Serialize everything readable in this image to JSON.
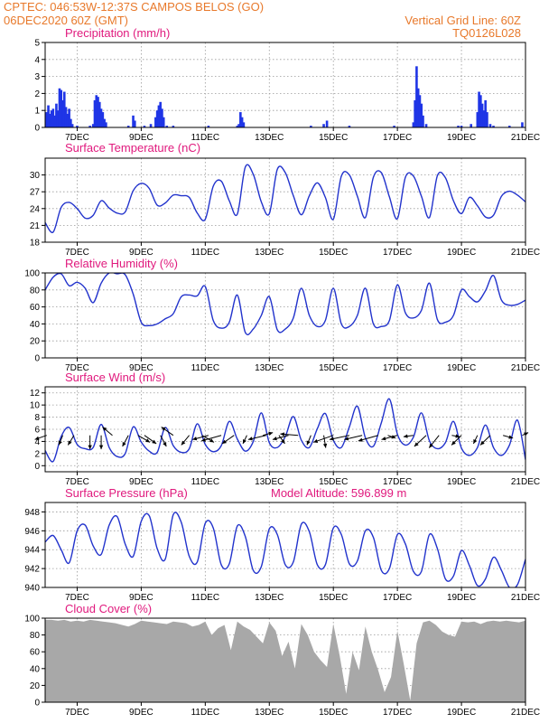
{
  "header": {
    "line1": "CPTEC:   046:53W-12:37S   CAMPOS BELOS (GO)",
    "line2": "06DEC2020 60Z (GMT)",
    "grid_note": "Vertical Grid Line: 60Z",
    "code": "TQ0126L028",
    "color": "#e8792b"
  },
  "colors": {
    "line": "#2233cc",
    "bar": "#1f35e6",
    "cloud": "#a8a8a8",
    "title": "#e0197d"
  },
  "chart_data": [
    {
      "type": "bar",
      "title": "Precipitation (mm/h)",
      "xlabel": "",
      "ylabel": "",
      "x_ticks": [
        "7DEC",
        "9DEC",
        "11DEC",
        "13DEC",
        "15DEC",
        "17DEC",
        "19DEC",
        "21DEC"
      ],
      "x_range": [
        6.0,
        21.0
      ],
      "ylim": [
        0,
        5
      ],
      "y_ticks": [
        0,
        1,
        2,
        3,
        4,
        5
      ],
      "grid": true,
      "bars": [
        [
          6.05,
          0.9
        ],
        [
          6.1,
          1.3
        ],
        [
          6.15,
          0.8
        ],
        [
          6.2,
          1.0
        ],
        [
          6.25,
          1.1
        ],
        [
          6.3,
          0.7
        ],
        [
          6.35,
          1.4
        ],
        [
          6.4,
          1.0
        ],
        [
          6.45,
          2.3
        ],
        [
          6.5,
          2.2
        ],
        [
          6.55,
          1.6
        ],
        [
          6.6,
          2.1
        ],
        [
          6.65,
          1.2
        ],
        [
          6.7,
          0.8
        ],
        [
          6.75,
          1.1
        ],
        [
          6.8,
          0.5
        ],
        [
          6.85,
          0.2
        ],
        [
          7.0,
          0.1
        ],
        [
          7.4,
          0.1
        ],
        [
          7.5,
          0.2
        ],
        [
          7.55,
          1.6
        ],
        [
          7.6,
          1.9
        ],
        [
          7.65,
          1.8
        ],
        [
          7.7,
          1.5
        ],
        [
          7.75,
          1.1
        ],
        [
          7.8,
          0.9
        ],
        [
          7.85,
          0.5
        ],
        [
          7.9,
          0.3
        ],
        [
          8.6,
          0.1
        ],
        [
          8.75,
          0.7
        ],
        [
          8.8,
          0.4
        ],
        [
          9.1,
          0.1
        ],
        [
          9.3,
          0.2
        ],
        [
          9.45,
          0.6
        ],
        [
          9.5,
          1.0
        ],
        [
          9.55,
          1.3
        ],
        [
          9.6,
          1.5
        ],
        [
          9.65,
          1.1
        ],
        [
          9.7,
          0.6
        ],
        [
          9.8,
          0.1
        ],
        [
          10.0,
          0.1
        ],
        [
          11.1,
          0.1
        ],
        [
          12.0,
          0.1
        ],
        [
          12.05,
          0.2
        ],
        [
          12.1,
          0.9
        ],
        [
          12.15,
          0.6
        ],
        [
          12.2,
          0.3
        ],
        [
          14.3,
          0.1
        ],
        [
          14.7,
          0.2
        ],
        [
          14.8,
          0.4
        ],
        [
          15.5,
          0.1
        ],
        [
          16.9,
          0.1
        ],
        [
          17.5,
          0.3
        ],
        [
          17.55,
          1.6
        ],
        [
          17.6,
          3.6
        ],
        [
          17.65,
          2.3
        ],
        [
          17.7,
          1.9
        ],
        [
          17.75,
          1.4
        ],
        [
          17.8,
          0.7
        ],
        [
          17.9,
          0.2
        ],
        [
          18.9,
          0.1
        ],
        [
          19.0,
          0.1
        ],
        [
          19.3,
          0.2
        ],
        [
          19.5,
          0.9
        ],
        [
          19.55,
          2.1
        ],
        [
          19.6,
          1.9
        ],
        [
          19.65,
          1.4
        ],
        [
          19.7,
          1.0
        ],
        [
          19.75,
          1.6
        ],
        [
          19.8,
          0.9
        ],
        [
          19.9,
          0.2
        ],
        [
          20.0,
          0.1
        ],
        [
          20.5,
          0.1
        ],
        [
          20.9,
          0.3
        ]
      ]
    },
    {
      "type": "line",
      "title": "Surface Temperature (nC)",
      "xlabel": "",
      "ylabel": "",
      "x_ticks": [
        "7DEC",
        "9DEC",
        "11DEC",
        "13DEC",
        "15DEC",
        "17DEC",
        "19DEC",
        "21DEC"
      ],
      "x_range": [
        6.0,
        21.0
      ],
      "ylim": [
        18,
        33
      ],
      "y_ticks": [
        18,
        21,
        24,
        27,
        30
      ],
      "grid": true,
      "x": [
        6.0,
        6.25,
        6.5,
        6.75,
        7.0,
        7.25,
        7.5,
        7.75,
        8.0,
        8.25,
        8.5,
        8.75,
        9.0,
        9.25,
        9.5,
        9.75,
        10.0,
        10.25,
        10.5,
        10.75,
        11.0,
        11.25,
        11.5,
        11.75,
        12.0,
        12.25,
        12.5,
        12.75,
        13.0,
        13.25,
        13.5,
        13.75,
        14.0,
        14.25,
        14.5,
        14.75,
        15.0,
        15.25,
        15.5,
        15.75,
        16.0,
        16.25,
        16.5,
        16.75,
        17.0,
        17.25,
        17.5,
        17.75,
        18.0,
        18.25,
        18.5,
        18.75,
        19.0,
        19.25,
        19.5,
        19.75,
        20.0,
        20.25,
        20.5,
        20.75,
        21.0
      ],
      "values": [
        21.5,
        19.8,
        24.2,
        25.1,
        24.0,
        22.3,
        22.8,
        25.4,
        24.1,
        23.2,
        23.4,
        27.2,
        28.5,
        27.6,
        24.6,
        25.0,
        26.4,
        26.3,
        26.0,
        23.2,
        22.1,
        28.0,
        28.9,
        25.4,
        23.0,
        31.4,
        30.1,
        25.2,
        23.1,
        31.0,
        30.4,
        26.3,
        22.9,
        26.3,
        28.6,
        26.0,
        22.1,
        29.8,
        30.0,
        26.2,
        22.4,
        29.6,
        30.4,
        26.1,
        22.2,
        29.6,
        29.8,
        26.2,
        22.4,
        29.9,
        29.5,
        25.4,
        23.1,
        26.0,
        24.5,
        22.5,
        22.8,
        26.2,
        27.1,
        26.4,
        25.2
      ]
    },
    {
      "type": "line",
      "title": "Relative Humidity (%)",
      "xlabel": "",
      "ylabel": "",
      "x_ticks": [
        "7DEC",
        "9DEC",
        "11DEC",
        "13DEC",
        "15DEC",
        "17DEC",
        "19DEC",
        "21DEC"
      ],
      "x_range": [
        6.0,
        21.0
      ],
      "ylim": [
        0,
        100
      ],
      "y_ticks": [
        0,
        20,
        40,
        60,
        80,
        100
      ],
      "grid": true,
      "x": [
        6.0,
        6.25,
        6.5,
        6.75,
        7.0,
        7.25,
        7.5,
        7.75,
        8.0,
        8.25,
        8.5,
        8.75,
        9.0,
        9.25,
        9.5,
        9.75,
        10.0,
        10.25,
        10.5,
        10.75,
        11.0,
        11.25,
        11.5,
        11.75,
        12.0,
        12.25,
        12.5,
        12.75,
        13.0,
        13.25,
        13.5,
        13.75,
        14.0,
        14.25,
        14.5,
        14.75,
        15.0,
        15.25,
        15.5,
        15.75,
        16.0,
        16.25,
        16.5,
        16.75,
        17.0,
        17.25,
        17.5,
        17.75,
        18.0,
        18.25,
        18.5,
        18.75,
        19.0,
        19.25,
        19.5,
        19.75,
        20.0,
        20.25,
        20.5,
        20.75,
        21.0
      ],
      "values": [
        80,
        95,
        99,
        85,
        89,
        82,
        65,
        88,
        100,
        99,
        98,
        75,
        42,
        38,
        40,
        46,
        52,
        72,
        74,
        73,
        84,
        44,
        35,
        42,
        74,
        30,
        34,
        50,
        72,
        33,
        34,
        47,
        82,
        50,
        37,
        44,
        82,
        40,
        37,
        50,
        82,
        40,
        37,
        44,
        86,
        53,
        47,
        56,
        88,
        45,
        42,
        50,
        80,
        72,
        66,
        79,
        97,
        68,
        62,
        63,
        68
      ]
    },
    {
      "type": "line",
      "title": "Surface Wind (m/s)",
      "xlabel": "",
      "ylabel": "",
      "x_ticks": [
        "7DEC",
        "9DEC",
        "11DEC",
        "13DEC",
        "15DEC",
        "17DEC",
        "19DEC",
        "21DEC"
      ],
      "x_range": [
        6.0,
        21.0
      ],
      "ylim": [
        -1,
        13
      ],
      "y_ticks": [
        0,
        2,
        4,
        6,
        8,
        10,
        12
      ],
      "grid": true,
      "x": [
        6.0,
        6.25,
        6.5,
        6.75,
        7.0,
        7.25,
        7.5,
        7.75,
        8.0,
        8.25,
        8.5,
        8.75,
        9.0,
        9.25,
        9.5,
        9.75,
        10.0,
        10.25,
        10.5,
        10.75,
        11.0,
        11.25,
        11.5,
        11.75,
        12.0,
        12.25,
        12.5,
        12.75,
        13.0,
        13.25,
        13.5,
        13.75,
        14.0,
        14.25,
        14.5,
        14.75,
        15.0,
        15.25,
        15.5,
        15.75,
        16.0,
        16.25,
        16.5,
        16.75,
        17.0,
        17.25,
        17.5,
        17.75,
        18.0,
        18.25,
        18.5,
        18.75,
        19.0,
        19.25,
        19.5,
        19.75,
        20.0,
        20.25,
        20.5,
        20.75,
        21.0
      ],
      "values": [
        2.5,
        0.7,
        4.8,
        6.3,
        3.5,
        2.8,
        3.0,
        6.8,
        3.0,
        1.5,
        2.0,
        6.4,
        3.9,
        2.4,
        2.2,
        6.3,
        3.3,
        2.2,
        2.8,
        6.9,
        3.5,
        2.3,
        3.3,
        7.3,
        4.4,
        2.4,
        4.0,
        8.7,
        3.8,
        3.0,
        4.8,
        8.1,
        4.2,
        3.0,
        6.1,
        8.6,
        4.2,
        3.0,
        6.4,
        9.8,
        4.6,
        3.2,
        7.1,
        11.0,
        5.2,
        3.4,
        4.7,
        8.7,
        4.1,
        2.8,
        3.8,
        7.3,
        2.9,
        1.7,
        3.0,
        6.7,
        3.0,
        1.7,
        3.4,
        7.5,
        1.0
      ],
      "wind_vectors": [
        [
          6.05,
          -0.6,
          -0.3
        ],
        [
          6.55,
          -0.2,
          -0.7
        ],
        [
          6.9,
          -0.3,
          -0.7
        ],
        [
          7.4,
          0.0,
          -1.0
        ],
        [
          7.75,
          0.0,
          -1.0
        ],
        [
          8.1,
          -0.5,
          0.6
        ],
        [
          8.6,
          -0.3,
          -0.8
        ],
        [
          8.9,
          0.6,
          -0.5
        ],
        [
          9.1,
          0.6,
          -0.6
        ],
        [
          9.6,
          0.3,
          -0.8
        ],
        [
          10.0,
          -0.6,
          0.6
        ],
        [
          10.5,
          -0.4,
          -0.7
        ],
        [
          10.9,
          0.6,
          -0.5
        ],
        [
          11.1,
          -0.8,
          -0.3
        ],
        [
          11.5,
          -1.0,
          -0.4
        ],
        [
          11.9,
          -0.6,
          -0.6
        ],
        [
          12.3,
          -0.2,
          -0.6
        ],
        [
          12.8,
          0.5,
          0.2
        ],
        [
          12.9,
          -0.9,
          -0.3
        ],
        [
          13.3,
          0.3,
          -0.6
        ],
        [
          13.6,
          -0.8,
          -0.3
        ],
        [
          13.9,
          -0.9,
          0.1
        ],
        [
          14.3,
          -0.2,
          -0.7
        ],
        [
          14.7,
          0.1,
          -0.9
        ],
        [
          15.0,
          -1.0,
          -0.5
        ],
        [
          15.5,
          -1.0,
          -0.3
        ],
        [
          15.9,
          -0.9,
          -0.3
        ],
        [
          16.4,
          -1.0,
          -0.4
        ],
        [
          16.7,
          0.4,
          -0.2
        ],
        [
          17.0,
          -0.8,
          -0.3
        ],
        [
          17.5,
          -0.5,
          -0.1
        ],
        [
          17.9,
          -0.6,
          -0.8
        ],
        [
          18.3,
          -0.5,
          -0.9
        ],
        [
          18.7,
          0.4,
          -0.1
        ],
        [
          19.0,
          -0.5,
          -0.7
        ],
        [
          19.5,
          -0.2,
          -0.6
        ],
        [
          19.9,
          -0.5,
          -0.7
        ],
        [
          20.3,
          0.5,
          -0.2
        ],
        [
          20.9,
          0.3,
          0.2
        ]
      ]
    },
    {
      "type": "line",
      "title": "Surface Pressure (hPa)",
      "annotation": "Model Altitude: 596.899  m",
      "xlabel": "",
      "ylabel": "",
      "x_ticks": [
        "7DEC",
        "9DEC",
        "11DEC",
        "13DEC",
        "15DEC",
        "17DEC",
        "19DEC",
        "21DEC"
      ],
      "x_range": [
        6.0,
        21.0
      ],
      "ylim": [
        940,
        949
      ],
      "y_ticks": [
        940,
        942,
        944,
        946,
        948
      ],
      "grid": true,
      "x": [
        6.0,
        6.25,
        6.5,
        6.75,
        7.0,
        7.25,
        7.5,
        7.75,
        8.0,
        8.25,
        8.5,
        8.75,
        9.0,
        9.25,
        9.5,
        9.75,
        10.0,
        10.25,
        10.5,
        10.75,
        11.0,
        11.25,
        11.5,
        11.75,
        12.0,
        12.25,
        12.5,
        12.75,
        13.0,
        13.25,
        13.5,
        13.75,
        14.0,
        14.25,
        14.5,
        14.75,
        15.0,
        15.25,
        15.5,
        15.75,
        16.0,
        16.25,
        16.5,
        16.75,
        17.0,
        17.25,
        17.5,
        17.75,
        18.0,
        18.25,
        18.5,
        18.75,
        19.0,
        19.25,
        19.5,
        19.75,
        20.0,
        20.25,
        20.5,
        20.75,
        21.0
      ],
      "values": [
        944.8,
        945.5,
        944.0,
        942.6,
        946.0,
        946.6,
        944.4,
        943.5,
        946.6,
        947.5,
        944.6,
        943.3,
        947.0,
        947.6,
        944.1,
        943.0,
        947.7,
        946.9,
        943.3,
        942.7,
        946.8,
        946.3,
        942.4,
        942.5,
        946.5,
        945.4,
        941.8,
        942.2,
        946.2,
        945.6,
        942.4,
        942.7,
        946.7,
        945.9,
        942.4,
        942.4,
        946.3,
        945.6,
        942.5,
        942.8,
        946.0,
        945.3,
        941.8,
        942.0,
        945.6,
        944.6,
        941.7,
        941.7,
        945.6,
        944.1,
        940.9,
        941.2,
        943.9,
        942.3,
        940.2,
        940.9,
        943.2,
        941.8,
        940.0,
        940.3,
        943.0
      ]
    },
    {
      "type": "area",
      "title": "Cloud Cover (%)",
      "xlabel": "",
      "ylabel": "",
      "x_ticks": [
        "7DEC",
        "9DEC",
        "11DEC",
        "13DEC",
        "15DEC",
        "17DEC",
        "19DEC",
        "21DEC"
      ],
      "x_range": [
        6.0,
        21.0
      ],
      "ylim": [
        0,
        100
      ],
      "y_ticks": [
        0,
        20,
        40,
        60,
        80,
        100
      ],
      "grid": true,
      "x": [
        6.0,
        6.2,
        6.4,
        6.6,
        6.8,
        7.0,
        7.2,
        7.4,
        7.6,
        7.8,
        8.0,
        8.2,
        8.4,
        8.6,
        8.8,
        9.0,
        9.2,
        9.4,
        9.6,
        9.8,
        10.0,
        10.2,
        10.4,
        10.6,
        10.8,
        11.0,
        11.2,
        11.4,
        11.6,
        11.8,
        12.0,
        12.2,
        12.4,
        12.6,
        12.8,
        13.0,
        13.2,
        13.4,
        13.6,
        13.8,
        14.0,
        14.2,
        14.4,
        14.6,
        14.8,
        15.0,
        15.2,
        15.4,
        15.6,
        15.8,
        16.0,
        16.2,
        16.4,
        16.6,
        16.8,
        17.0,
        17.2,
        17.4,
        17.6,
        17.8,
        18.0,
        18.2,
        18.4,
        18.6,
        18.8,
        19.0,
        19.2,
        19.4,
        19.6,
        19.8,
        20.0,
        20.2,
        20.4,
        20.6,
        20.8,
        21.0
      ],
      "values": [
        98,
        98,
        97,
        98,
        96,
        97,
        96,
        98,
        97,
        96,
        95,
        94,
        92,
        90,
        93,
        97,
        96,
        95,
        94,
        93,
        96,
        95,
        94,
        90,
        92,
        96,
        80,
        88,
        92,
        62,
        96,
        90,
        86,
        78,
        70,
        95,
        85,
        55,
        72,
        40,
        93,
        80,
        60,
        50,
        42,
        93,
        55,
        10,
        60,
        38,
        90,
        60,
        38,
        12,
        30,
        85,
        45,
        2,
        70,
        95,
        97,
        92,
        84,
        80,
        78,
        96,
        95,
        96,
        93,
        96,
        97,
        96,
        97,
        96,
        95,
        97
      ]
    }
  ]
}
